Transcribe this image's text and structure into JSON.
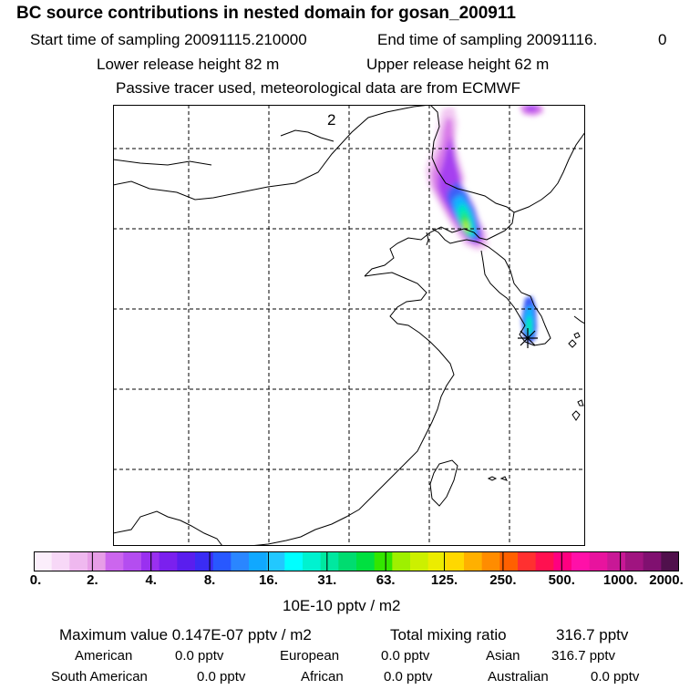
{
  "header": {
    "title": "BC  source contributions in nested domain for gosan_200911",
    "start_label": "Start time of sampling 20091115.210000",
    "end_label": "End time of sampling 20091116.",
    "end_suffix": "0",
    "lower_label": "Lower release height   82 m",
    "upper_label": "Upper release height   62 m",
    "info": "Passive tracer used, meteorological data are from ECMWF"
  },
  "map": {
    "panel_label": "2",
    "receptor_marker": "asterisk-marker"
  },
  "colorbar": {
    "colors": [
      "#fbeefb",
      "#f7d8f7",
      "#efb8ef",
      "#e79ee7",
      "#cc66ee",
      "#b44df0",
      "#9a30f0",
      "#7b20ee",
      "#5a1eee",
      "#3a2cf4",
      "#2858ff",
      "#2a86ff",
      "#10a8ff",
      "#22c8ff",
      "#00ffff",
      "#00f2d0",
      "#00e8a0",
      "#00dc70",
      "#00e040",
      "#33e600",
      "#9ef000",
      "#ccf000",
      "#ecec00",
      "#ffd800",
      "#ffb000",
      "#ff8c00",
      "#ff6000",
      "#ff3030",
      "#ff1050",
      "#ff0080",
      "#ff10a8",
      "#e8139e",
      "#c81896",
      "#a01480",
      "#801070",
      "#50104c"
    ],
    "ticks": [
      "0.",
      "2.",
      "4.",
      "8.",
      "16.",
      "31.",
      "63.",
      "125.",
      "250.",
      "500.",
      "1000.",
      "2000."
    ],
    "unit": "10E-10 pptv / m2"
  },
  "stats": {
    "max_label": "Maximum value  0.147E-07 pptv / m2",
    "total_label": "Total mixing ratio",
    "total_value": "316.7 pptv",
    "american_label": "American",
    "american_value": "0.0 pptv",
    "european_label": "European",
    "european_value": "0.0 pptv",
    "asian_label": "Asian",
    "asian_value": "316.7 pptv",
    "south_american_label": "South American",
    "south_american_value": "0.0 pptv",
    "african_label": "African",
    "african_value": "0.0 pptv",
    "australian_label": "Australian",
    "australian_value": "0.0 pptv"
  }
}
